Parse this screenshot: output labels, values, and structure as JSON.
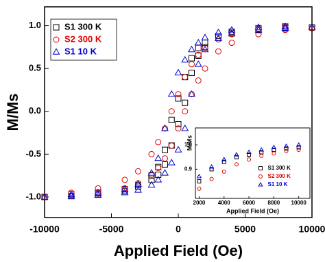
{
  "chart_data": [
    {
      "type": "scatter",
      "xlabel": "Applied Field (Oe)",
      "ylabel": "M/Ms",
      "xlim": [
        -10000,
        10000
      ],
      "ylim": [
        -1.24,
        1.22
      ],
      "xticks": [
        -10000,
        -5000,
        0,
        5000,
        10000
      ],
      "yticks": [
        {
          "value": -1.0,
          "label": "-1.0"
        },
        -0.5,
        {
          "value": 0.0,
          "label": "0.0"
        },
        0.5,
        {
          "value": 1.0,
          "label": "1.0"
        }
      ],
      "legend": "upper left",
      "series": [
        {
          "name": "S1 300 K",
          "color": "#000000",
          "marker": "square",
          "x": [
            -10000,
            -8000,
            -6000,
            -4000,
            -3000,
            -2000,
            -1500,
            -1000,
            -500,
            0,
            500,
            1000,
            1500,
            2000,
            3000,
            4000,
            6000,
            8000,
            10000,
            8000,
            6000,
            4000,
            3000,
            2000,
            1500,
            1000,
            500,
            0,
            -500,
            -1000,
            -1500,
            -2000,
            -3000,
            -4000,
            -6000,
            -8000
          ],
          "y": [
            -1.0,
            -0.99,
            -0.97,
            -0.93,
            -0.88,
            -0.8,
            -0.74,
            -0.62,
            -0.4,
            -0.15,
            0.1,
            0.45,
            0.65,
            0.75,
            0.86,
            0.91,
            0.95,
            0.97,
            0.98,
            0.99,
            0.97,
            0.93,
            0.88,
            0.8,
            0.74,
            0.62,
            0.4,
            0.15,
            -0.1,
            -0.45,
            -0.65,
            -0.75,
            -0.86,
            -0.91,
            -0.95,
            -0.97
          ]
        },
        {
          "name": "S2 300 K",
          "color": "#e00000",
          "marker": "circle",
          "x": [
            -10000,
            -8000,
            -6000,
            -4000,
            -3000,
            -2000,
            -1500,
            -1000,
            -500,
            0,
            500,
            1000,
            1500,
            2000,
            3000,
            4000,
            6000,
            8000,
            10000,
            8000,
            6000,
            4000,
            3000,
            2000,
            1500,
            1000,
            500,
            0,
            -500,
            -1000,
            -1500,
            -2000,
            -3000,
            -4000,
            -6000,
            -8000
          ],
          "y": [
            -1.0,
            -0.99,
            -0.96,
            -0.9,
            -0.84,
            -0.74,
            -0.66,
            -0.55,
            -0.4,
            -0.2,
            0.0,
            0.2,
            0.36,
            0.5,
            0.7,
            0.8,
            0.9,
            0.95,
            0.97,
            0.99,
            0.96,
            0.9,
            0.84,
            0.74,
            0.66,
            0.55,
            0.4,
            0.2,
            0.0,
            -0.2,
            -0.36,
            -0.5,
            -0.7,
            -0.8,
            -0.9,
            -0.95
          ]
        },
        {
          "name": "S1 10 K",
          "color": "#0000d0",
          "marker": "triangle",
          "x": [
            -10000,
            -8000,
            -6000,
            -4000,
            -3000,
            -2000,
            -1500,
            -1000,
            -500,
            0,
            500,
            1000,
            1500,
            2000,
            3000,
            4000,
            6000,
            8000,
            10000,
            8000,
            6000,
            4000,
            3000,
            2000,
            1500,
            1000,
            500,
            0,
            -500,
            -1000,
            -1500,
            -2000,
            -3000,
            -4000,
            -6000,
            -8000
          ],
          "y": [
            -1.0,
            -0.99,
            -0.98,
            -0.95,
            -0.92,
            -0.86,
            -0.8,
            -0.72,
            -0.6,
            -0.45,
            -0.2,
            0.2,
            0.55,
            0.72,
            0.85,
            0.91,
            0.95,
            0.97,
            0.98,
            0.99,
            0.98,
            0.95,
            0.92,
            0.86,
            0.8,
            0.72,
            0.6,
            0.45,
            0.2,
            -0.2,
            -0.55,
            -0.72,
            -0.85,
            -0.91,
            -0.95,
            -0.97
          ]
        }
      ]
    },
    {
      "type": "scatter",
      "xlabel": "Applied Field (Oe)",
      "ylabel": "M/Ms",
      "xlim": [
        1700,
        10900
      ],
      "ylim": [
        0.78,
        1.07
      ],
      "xticks": [
        2000,
        4000,
        6000,
        8000,
        10000
      ],
      "yticks": [
        0.9,
        {
          "value": 1.0,
          "label": "1.0"
        }
      ],
      "legend": "center right",
      "series": [
        {
          "name": "S1 300 K",
          "color": "#000000",
          "marker": "square",
          "x": [
            2000,
            3000,
            4000,
            5000,
            6000,
            7000,
            8000,
            9000,
            10000
          ],
          "y": [
            0.85,
            0.9,
            0.93,
            0.95,
            0.96,
            0.97,
            0.98,
            0.985,
            0.99
          ]
        },
        {
          "name": "S2 300 K",
          "color": "#e00000",
          "marker": "circle",
          "x": [
            2000,
            3000,
            4000,
            5000,
            6000,
            7000,
            8000,
            9000,
            10000
          ],
          "y": [
            0.82,
            0.86,
            0.89,
            0.92,
            0.94,
            0.955,
            0.965,
            0.975,
            0.98
          ]
        },
        {
          "name": "S1 10 K",
          "color": "#0000d0",
          "marker": "triangle",
          "x": [
            2000,
            3000,
            4000,
            5000,
            6000,
            7000,
            8000,
            9000,
            10000
          ],
          "y": [
            0.87,
            0.91,
            0.94,
            0.96,
            0.97,
            0.98,
            0.99,
            0.995,
            1.0
          ]
        }
      ]
    }
  ]
}
